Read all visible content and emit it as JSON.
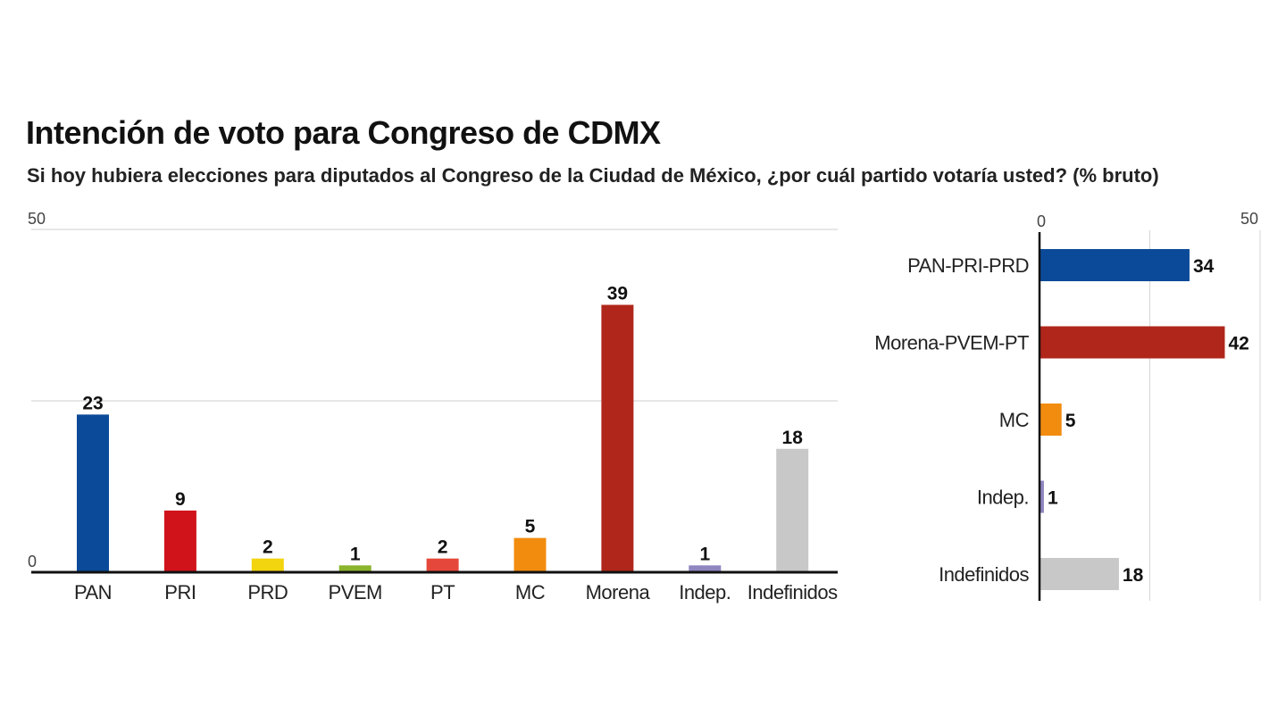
{
  "title": "Intención de voto para Congreso de CDMX",
  "subtitle": "Si hoy hubiera elecciones para diputados al Congreso de la Ciudad de México, ¿por cuál partido votaría usted? (% bruto)",
  "chart_data": [
    {
      "type": "bar",
      "orientation": "vertical",
      "categories": [
        "PAN",
        "PRI",
        "PRD",
        "PVEM",
        "PT",
        "MC",
        "Morena",
        "Indep.",
        "Indefinidos"
      ],
      "values": [
        23,
        9,
        2,
        1,
        2,
        5,
        39,
        1,
        18
      ],
      "colors": [
        "#0b4a99",
        "#d0131a",
        "#f2d40f",
        "#8ab42c",
        "#e5483b",
        "#f28c0f",
        "#b0261a",
        "#8f86c0",
        "#c8c8c8"
      ],
      "ylim": [
        0,
        50
      ],
      "yticks": [
        "0",
        "50"
      ],
      "grid": true,
      "data_labels": true
    },
    {
      "type": "bar",
      "orientation": "horizontal",
      "categories": [
        "PAN-PRI-PRD",
        "Morena-PVEM-PT",
        "MC",
        "Indep.",
        "Indefinidos"
      ],
      "values": [
        34,
        42,
        5,
        1,
        18
      ],
      "colors": [
        "#0b4a99",
        "#b0261a",
        "#f28c0f",
        "#8f86c0",
        "#c8c8c8"
      ],
      "xlim": [
        0,
        50
      ],
      "xticks": [
        "0",
        "50"
      ],
      "grid": true,
      "data_labels": true
    }
  ]
}
